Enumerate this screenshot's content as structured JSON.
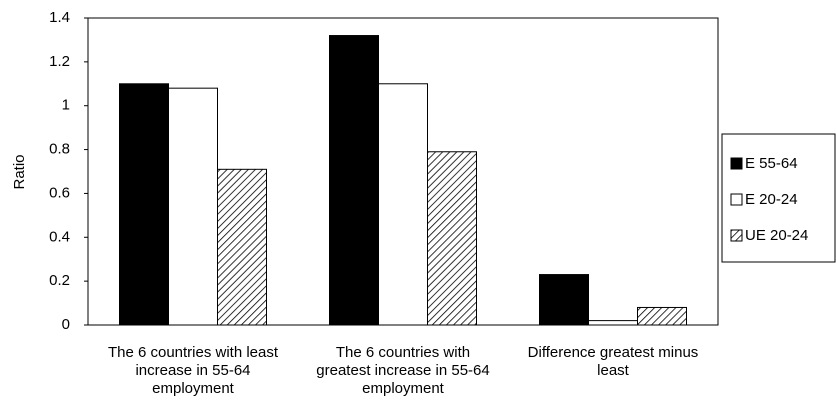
{
  "chart_data": {
    "type": "bar",
    "ylabel": "Ratio",
    "categories": [
      "The 6 countries with least increase in 55-64 employment",
      "The 6 countries with greatest increase in 55-64 employment",
      "Difference greatest minus least"
    ],
    "series": [
      {
        "name": "E 55-64",
        "color": "#000000",
        "values": [
          1.1,
          1.32,
          0.23
        ]
      },
      {
        "name": "E 20-24",
        "color": "#ffffff",
        "values": [
          1.08,
          1.1,
          0.02
        ]
      },
      {
        "name": "UE 20-24",
        "color": "#000000",
        "pattern": "hatch",
        "values": [
          0.71,
          0.79,
          0.08
        ]
      }
    ],
    "ylim": [
      0,
      1.4
    ],
    "yticks": [
      0,
      0.2,
      0.4,
      0.6,
      0.8,
      1,
      1.2,
      1.4
    ],
    "grid": false,
    "legend": "right"
  }
}
